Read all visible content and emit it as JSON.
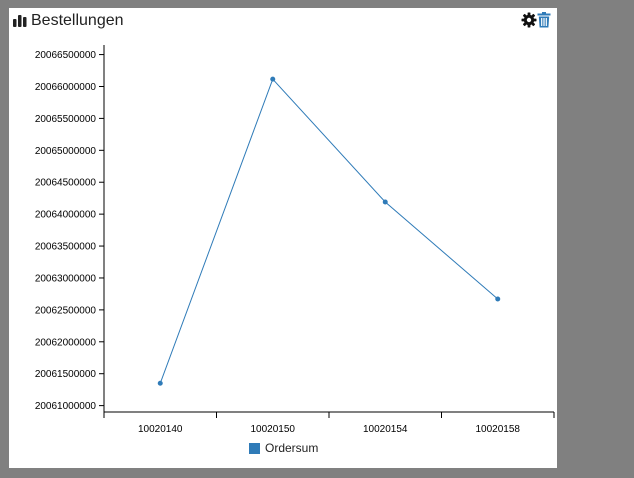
{
  "header": {
    "title": "Bestellungen",
    "chart_icon": "bar-chart-icon",
    "settings_icon": "gear-icon",
    "delete_icon": "trash-icon"
  },
  "colors": {
    "series": "#2f7bb8",
    "delete": "#2f7bb8",
    "axis": "#000000"
  },
  "chart_data": {
    "type": "line",
    "title": "",
    "xlabel": "",
    "ylabel": "",
    "categories": [
      "10020140",
      "10020150",
      "10020154",
      "10020158"
    ],
    "series": [
      {
        "name": "Ordersum",
        "values": [
          20061350000,
          20066115000,
          20064190000,
          20062670000
        ]
      }
    ],
    "yticks": [
      20061000000,
      20061500000,
      20062000000,
      20062500000,
      20063000000,
      20063500000,
      20064000000,
      20064500000,
      20065000000,
      20065500000,
      20066000000,
      20066500000
    ],
    "ylim": [
      20060900000,
      20066650000
    ],
    "legend": "bottom",
    "grid": false
  }
}
